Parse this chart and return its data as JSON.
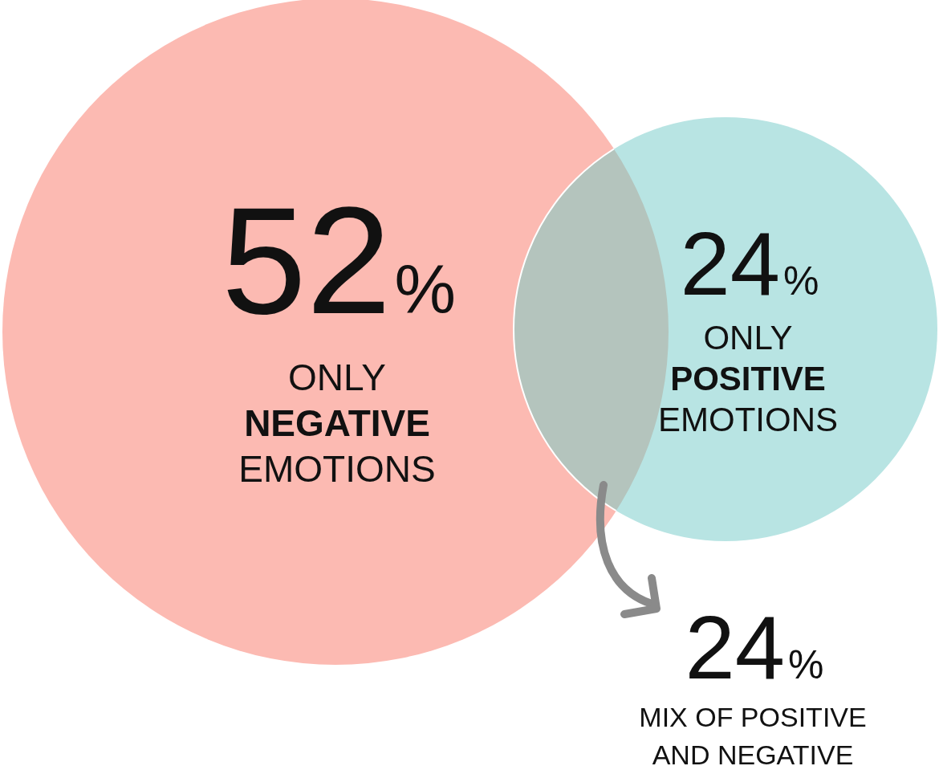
{
  "chart_data": {
    "type": "other",
    "categories": [
      "ONLY\nNEGATIVE\nEMOTIONS",
      "ONLY\nPOSITIVE\nEMOTIONS",
      "MIX OF POSITIVE\nAND NEGATIVE"
    ],
    "values": [
      52,
      24,
      24
    ],
    "value_labels": [
      "52%",
      "24%",
      "24%"
    ],
    "colors": [
      "#fcbab2",
      "#b8e4e3",
      "#b4c4bd"
    ]
  }
}
